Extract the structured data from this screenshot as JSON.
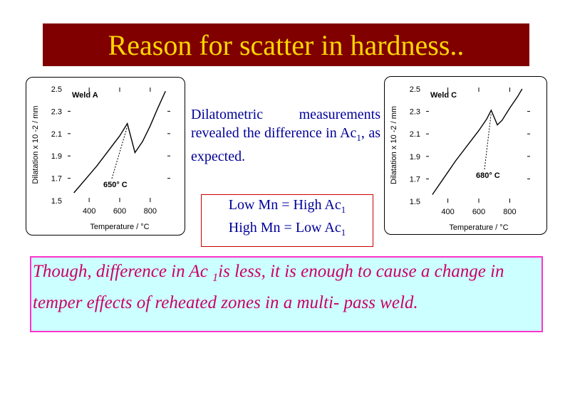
{
  "slide": {
    "title": "Reason for scatter in hardness..",
    "colors": {
      "title_bg": "#800000",
      "title_text": "#ffd700",
      "body_text": "#000099",
      "note_text": "#cc0066",
      "note_bg": "#ccffff",
      "note_border": "#ff33cc",
      "box_border": "#cc0000"
    }
  },
  "middle": {
    "text_pre": "Dilatometric measurements revealed the difference in Ac",
    "text_sub": "1",
    "text_post": ", as expected."
  },
  "mn_relation": {
    "line1_pre": "Low Mn  = High Ac",
    "line1_sub": "1",
    "line2_pre": "High Mn = Low Ac",
    "line2_sub": "1"
  },
  "note": {
    "pre": "Though, difference in Ac ",
    "sub": "1",
    "post": "is less, it is enough to cause a change in temper effects of reheated zones in a multi- pass weld."
  },
  "chart_data": [
    {
      "type": "line",
      "label": "Weld A",
      "annotation": "650° C",
      "ylabel": "Dilatation  x  10 -2 / mm",
      "xlabel": "Temperature /   °C",
      "x_ticks": [
        "400",
        "600",
        "800"
      ],
      "y_ticks": [
        "2.5",
        "2.3",
        "2.1",
        "1.9",
        "1.7",
        "1.5"
      ],
      "xlim": [
        250,
        950
      ],
      "ylim": [
        1.5,
        2.5
      ],
      "series": [
        {
          "x": [
            300,
            450,
            600,
            650,
            700,
            750,
            800,
            850,
            900
          ],
          "y": [
            1.57,
            1.81,
            2.08,
            2.19,
            1.93,
            2.03,
            2.17,
            2.33,
            2.48
          ]
        }
      ]
    },
    {
      "type": "line",
      "label": "Weld C",
      "annotation": "680° C",
      "ylabel": "Dilatation  x  10 -2 / mm",
      "xlabel": "Temperature /   °C",
      "x_ticks": [
        "400",
        "600",
        "800"
      ],
      "y_ticks": [
        "2.5",
        "2.3",
        "2.1",
        "1.9",
        "1.7",
        "1.5"
      ],
      "xlim": [
        250,
        950
      ],
      "ylim": [
        1.5,
        2.5
      ],
      "series": [
        {
          "x": [
            300,
            450,
            600,
            650,
            680,
            720,
            750,
            800,
            850,
            880
          ],
          "y": [
            1.56,
            1.86,
            2.13,
            2.23,
            2.31,
            2.18,
            2.22,
            2.33,
            2.43,
            2.5
          ]
        }
      ]
    }
  ]
}
